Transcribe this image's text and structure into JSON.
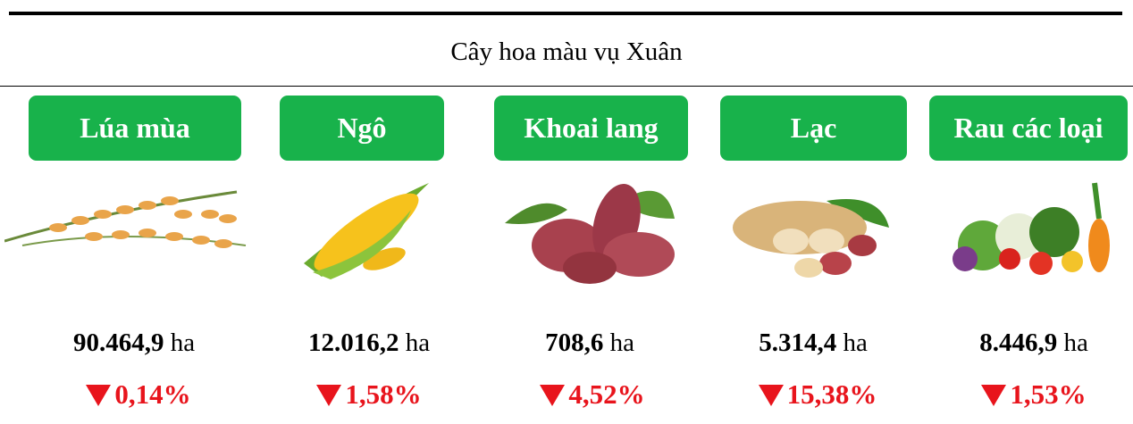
{
  "title": "Cây hoa màu vụ Xuân",
  "items": [
    {
      "name": "Lúa mùa",
      "value": "90.464,9",
      "unit": "ha",
      "change": "0,14%"
    },
    {
      "name": "Ngô",
      "value": "12.016,2",
      "unit": "ha",
      "change": "1,58%"
    },
    {
      "name": "Khoai lang",
      "value": "708,6",
      "unit": "ha",
      "change": "4,52%"
    },
    {
      "name": "Lạc",
      "value": "5.314,4",
      "unit": "ha",
      "change": "15,38%"
    },
    {
      "name": "Rau các loại",
      "value": "8.446,9",
      "unit": "ha",
      "change": "1,53%"
    }
  ]
}
